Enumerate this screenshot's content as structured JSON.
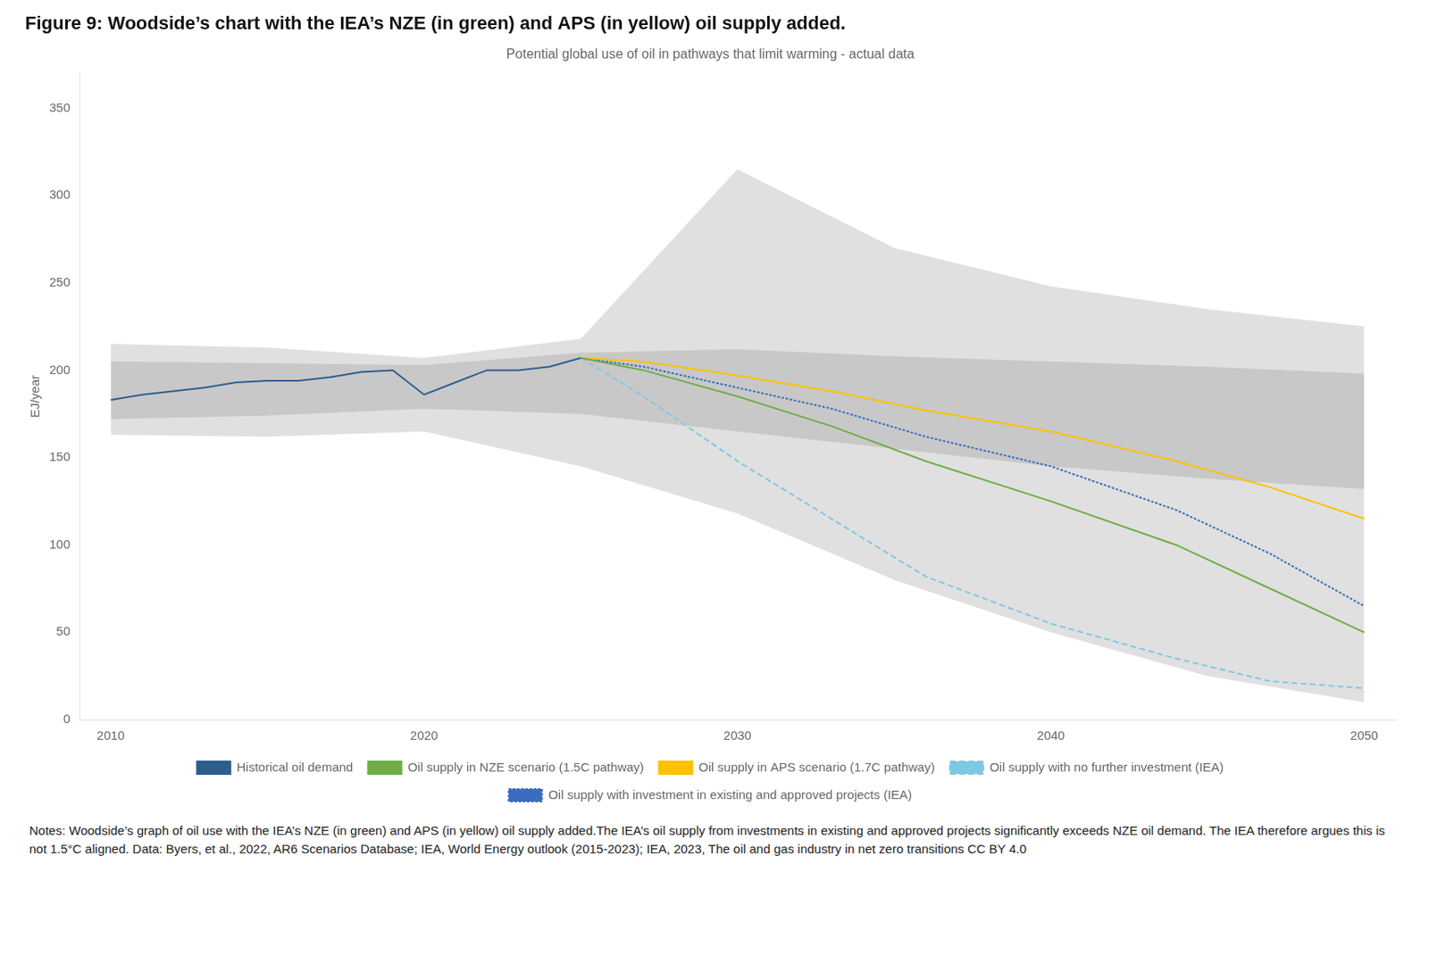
{
  "chart_data": {
    "type": "line",
    "title": "Figure 9: Woodside’s chart with the IEA’s NZE (in green) and APS (in yellow) oil supply added.",
    "subtitle": "Potential global use of oil in pathways that limit warming - actual data",
    "ylabel": "EJ/year",
    "notes": "Notes: Woodside’s graph of oil use with the IEA’s NZE (in green) and APS (in yellow) oil supply added.The IEA’s oil supply from investments in existing and approved projects significantly exceeds NZE oil demand. The IEA therefore argues this is not 1.5°C aligned. Data: Byers, et al., 2022, AR6 Scenarios Database;  IEA, World Energy outlook (2015-2023); IEA, 2023, The oil and gas industry in net zero transitions CC BY 4.0",
    "xlim": [
      2009,
      2051
    ],
    "ylim": [
      0,
      370
    ],
    "xticks": [
      2010,
      2020,
      2030,
      2040,
      2050
    ],
    "yticks": [
      0,
      50,
      100,
      150,
      200,
      250,
      300,
      350
    ],
    "grid": false,
    "legend": "bottom",
    "series": [
      {
        "name": "Historical oil demand",
        "color": "#2E5E8E",
        "line_style": "solid",
        "x": [
          2010,
          2011,
          2012,
          2013,
          2014,
          2015,
          2016,
          2017,
          2018,
          2019,
          2020,
          2021,
          2022,
          2023,
          2024,
          2025
        ],
        "values": [
          183,
          186,
          188,
          190,
          193,
          194,
          194,
          196,
          199,
          200,
          186,
          193,
          200,
          200,
          202,
          207
        ]
      },
      {
        "name": "Oil supply with no further investment (IEA)",
        "color": "#7EC8E3",
        "line_style": "dashed",
        "x": [
          2025,
          2027,
          2030,
          2033,
          2036,
          2040,
          2044,
          2047,
          2050
        ],
        "values": [
          207,
          185,
          148,
          115,
          82,
          55,
          35,
          22,
          18
        ]
      },
      {
        "name": "Oil supply with investment in existing and approved projects (IEA)",
        "color": "#3A6DBF",
        "line_style": "dotted",
        "x": [
          2025,
          2027,
          2030,
          2033,
          2036,
          2040,
          2044,
          2047,
          2050
        ],
        "values": [
          207,
          202,
          190,
          178,
          162,
          145,
          120,
          95,
          65
        ]
      },
      {
        "name": "Oil supply in NZE scenario (1.5C pathway)",
        "color": "#70AD47",
        "line_style": "solid",
        "x": [
          2025,
          2027,
          2030,
          2033,
          2036,
          2040,
          2044,
          2047,
          2050
        ],
        "values": [
          207,
          200,
          185,
          168,
          148,
          125,
          100,
          75,
          50
        ]
      },
      {
        "name": "Oil supply in APS scenario (1.7C pathway)",
        "color": "#FFC000",
        "line_style": "solid",
        "x": [
          2025,
          2027,
          2030,
          2033,
          2036,
          2040,
          2044,
          2047,
          2050
        ],
        "values": [
          207,
          205,
          197,
          188,
          177,
          165,
          148,
          133,
          115
        ]
      }
    ],
    "bands": [
      {
        "color": "#E0E0E0",
        "x": [
          2010,
          2015,
          2020,
          2025,
          2030,
          2035,
          2040,
          2045,
          2050
        ],
        "lower": [
          163,
          162,
          165,
          145,
          118,
          80,
          50,
          25,
          10
        ],
        "upper": [
          215,
          213,
          207,
          218,
          315,
          270,
          248,
          235,
          225
        ]
      },
      {
        "color": "#C8C8C8",
        "x": [
          2010,
          2015,
          2020,
          2025,
          2030,
          2035,
          2040,
          2045,
          2050
        ],
        "lower": [
          172,
          174,
          178,
          175,
          165,
          155,
          145,
          138,
          132
        ],
        "upper": [
          205,
          204,
          203,
          210,
          212,
          208,
          205,
          202,
          198
        ]
      }
    ]
  }
}
